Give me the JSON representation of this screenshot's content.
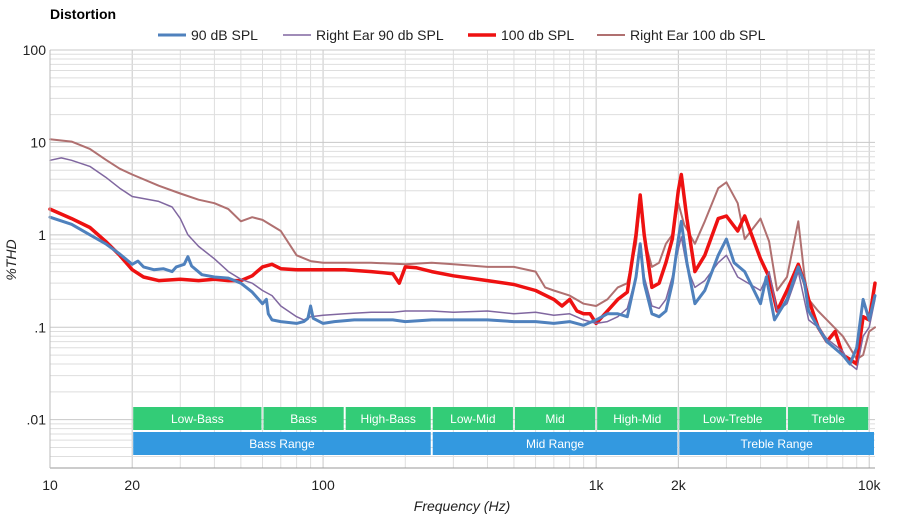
{
  "chart_data": {
    "type": "line",
    "title": "Distortion",
    "xlabel": "Frequency (Hz)",
    "ylabel": "%THD",
    "xscale": "log",
    "yscale": "log",
    "xlim": [
      10,
      10500
    ],
    "ylim": [
      0.003,
      100
    ],
    "grid": true,
    "legend_position": "top",
    "x_ticks": [
      {
        "value": 10,
        "label": "10"
      },
      {
        "value": 20,
        "label": "20"
      },
      {
        "value": 100,
        "label": "100"
      },
      {
        "value": 1000,
        "label": "1k"
      },
      {
        "value": 2000,
        "label": "2k"
      },
      {
        "value": 10000,
        "label": "10k"
      }
    ],
    "y_ticks": [
      {
        "value": 100,
        "label": "100"
      },
      {
        "value": 10,
        "label": "10"
      },
      {
        "value": 1,
        "label": "1"
      },
      {
        "value": 0.1,
        "label": ".1"
      },
      {
        "value": 0.01,
        "label": ".01"
      }
    ],
    "series": [
      {
        "name": "90 dB SPL",
        "color": "#4f81bd",
        "width": 3,
        "points": [
          [
            10,
            1.55
          ],
          [
            12,
            1.3
          ],
          [
            14,
            1.0
          ],
          [
            16,
            0.8
          ],
          [
            18,
            0.62
          ],
          [
            20,
            0.48
          ],
          [
            21,
            0.52
          ],
          [
            22,
            0.45
          ],
          [
            24,
            0.42
          ],
          [
            26,
            0.43
          ],
          [
            28,
            0.4
          ],
          [
            29,
            0.45
          ],
          [
            31,
            0.48
          ],
          [
            32,
            0.58
          ],
          [
            33,
            0.46
          ],
          [
            36,
            0.37
          ],
          [
            40,
            0.35
          ],
          [
            45,
            0.34
          ],
          [
            50,
            0.3
          ],
          [
            55,
            0.24
          ],
          [
            60,
            0.18
          ],
          [
            62,
            0.2
          ],
          [
            63,
            0.14
          ],
          [
            65,
            0.12
          ],
          [
            70,
            0.115
          ],
          [
            80,
            0.11
          ],
          [
            85,
            0.115
          ],
          [
            88,
            0.125
          ],
          [
            90,
            0.17
          ],
          [
            92,
            0.125
          ],
          [
            100,
            0.11
          ],
          [
            110,
            0.115
          ],
          [
            130,
            0.12
          ],
          [
            150,
            0.12
          ],
          [
            180,
            0.12
          ],
          [
            200,
            0.115
          ],
          [
            250,
            0.12
          ],
          [
            300,
            0.12
          ],
          [
            400,
            0.12
          ],
          [
            500,
            0.115
          ],
          [
            600,
            0.115
          ],
          [
            700,
            0.11
          ],
          [
            800,
            0.115
          ],
          [
            900,
            0.105
          ],
          [
            1000,
            0.12
          ],
          [
            1100,
            0.14
          ],
          [
            1200,
            0.14
          ],
          [
            1300,
            0.13
          ],
          [
            1400,
            0.35
          ],
          [
            1450,
            0.8
          ],
          [
            1500,
            0.3
          ],
          [
            1600,
            0.14
          ],
          [
            1700,
            0.13
          ],
          [
            1800,
            0.15
          ],
          [
            1900,
            0.3
          ],
          [
            2000,
            0.9
          ],
          [
            2050,
            1.4
          ],
          [
            2150,
            0.5
          ],
          [
            2300,
            0.18
          ],
          [
            2500,
            0.25
          ],
          [
            2800,
            0.6
          ],
          [
            3000,
            0.9
          ],
          [
            3200,
            0.5
          ],
          [
            3500,
            0.4
          ],
          [
            4000,
            0.18
          ],
          [
            4200,
            0.35
          ],
          [
            4500,
            0.12
          ],
          [
            5000,
            0.2
          ],
          [
            5500,
            0.45
          ],
          [
            5800,
            0.3
          ],
          [
            6000,
            0.15
          ],
          [
            6500,
            0.1
          ],
          [
            7000,
            0.07
          ],
          [
            8000,
            0.05
          ],
          [
            8500,
            0.04
          ],
          [
            9000,
            0.06
          ],
          [
            9500,
            0.2
          ],
          [
            10000,
            0.12
          ],
          [
            10500,
            0.22
          ]
        ]
      },
      {
        "name": "Right Ear 90 db SPL",
        "color": "#8067a0",
        "width": 1.5,
        "points": [
          [
            10,
            6.4
          ],
          [
            11,
            6.8
          ],
          [
            12,
            6.4
          ],
          [
            14,
            5.5
          ],
          [
            16,
            4.2
          ],
          [
            18,
            3.2
          ],
          [
            20,
            2.6
          ],
          [
            25,
            2.3
          ],
          [
            28,
            2.0
          ],
          [
            30,
            1.5
          ],
          [
            32,
            1.0
          ],
          [
            35,
            0.75
          ],
          [
            40,
            0.55
          ],
          [
            45,
            0.4
          ],
          [
            50,
            0.33
          ],
          [
            55,
            0.3
          ],
          [
            60,
            0.25
          ],
          [
            65,
            0.22
          ],
          [
            70,
            0.17
          ],
          [
            80,
            0.13
          ],
          [
            85,
            0.12
          ],
          [
            90,
            0.13
          ],
          [
            100,
            0.135
          ],
          [
            120,
            0.14
          ],
          [
            150,
            0.145
          ],
          [
            180,
            0.145
          ],
          [
            200,
            0.15
          ],
          [
            250,
            0.15
          ],
          [
            300,
            0.145
          ],
          [
            400,
            0.15
          ],
          [
            500,
            0.14
          ],
          [
            600,
            0.145
          ],
          [
            700,
            0.135
          ],
          [
            800,
            0.14
          ],
          [
            900,
            0.12
          ],
          [
            1000,
            0.11
          ],
          [
            1100,
            0.115
          ],
          [
            1200,
            0.13
          ],
          [
            1300,
            0.16
          ],
          [
            1400,
            0.35
          ],
          [
            1450,
            0.8
          ],
          [
            1500,
            0.35
          ],
          [
            1600,
            0.17
          ],
          [
            1700,
            0.16
          ],
          [
            1800,
            0.2
          ],
          [
            1900,
            0.35
          ],
          [
            2000,
            0.7
          ],
          [
            2050,
            0.95
          ],
          [
            2150,
            0.45
          ],
          [
            2300,
            0.27
          ],
          [
            2500,
            0.32
          ],
          [
            2800,
            0.5
          ],
          [
            3000,
            0.6
          ],
          [
            3300,
            0.35
          ],
          [
            4000,
            0.25
          ],
          [
            4300,
            0.4
          ],
          [
            4600,
            0.15
          ],
          [
            5000,
            0.18
          ],
          [
            5500,
            0.4
          ],
          [
            6000,
            0.12
          ],
          [
            6500,
            0.1
          ],
          [
            7000,
            0.075
          ],
          [
            8000,
            0.055
          ],
          [
            8500,
            0.04
          ],
          [
            9000,
            0.035
          ],
          [
            9500,
            0.08
          ],
          [
            10000,
            0.1
          ],
          [
            10500,
            0.2
          ]
        ]
      },
      {
        "name": "100 db SPL",
        "color": "#ee1111",
        "width": 3.5,
        "points": [
          [
            10,
            1.9
          ],
          [
            12,
            1.5
          ],
          [
            14,
            1.2
          ],
          [
            16,
            0.85
          ],
          [
            18,
            0.6
          ],
          [
            20,
            0.42
          ],
          [
            22,
            0.35
          ],
          [
            25,
            0.32
          ],
          [
            30,
            0.33
          ],
          [
            35,
            0.32
          ],
          [
            40,
            0.33
          ],
          [
            45,
            0.32
          ],
          [
            50,
            0.32
          ],
          [
            55,
            0.36
          ],
          [
            60,
            0.45
          ],
          [
            65,
            0.48
          ],
          [
            70,
            0.43
          ],
          [
            80,
            0.42
          ],
          [
            100,
            0.42
          ],
          [
            120,
            0.42
          ],
          [
            150,
            0.4
          ],
          [
            180,
            0.38
          ],
          [
            190,
            0.3
          ],
          [
            200,
            0.45
          ],
          [
            220,
            0.44
          ],
          [
            250,
            0.4
          ],
          [
            300,
            0.36
          ],
          [
            400,
            0.32
          ],
          [
            500,
            0.29
          ],
          [
            600,
            0.25
          ],
          [
            700,
            0.2
          ],
          [
            750,
            0.17
          ],
          [
            800,
            0.2
          ],
          [
            850,
            0.15
          ],
          [
            900,
            0.14
          ],
          [
            950,
            0.14
          ],
          [
            1000,
            0.11
          ],
          [
            1100,
            0.15
          ],
          [
            1200,
            0.2
          ],
          [
            1300,
            0.24
          ],
          [
            1400,
            1.0
          ],
          [
            1450,
            2.7
          ],
          [
            1500,
            1.0
          ],
          [
            1600,
            0.27
          ],
          [
            1700,
            0.3
          ],
          [
            1800,
            0.5
          ],
          [
            1900,
            0.9
          ],
          [
            2000,
            3.0
          ],
          [
            2050,
            4.5
          ],
          [
            2150,
            1.5
          ],
          [
            2300,
            0.4
          ],
          [
            2500,
            0.6
          ],
          [
            2800,
            1.5
          ],
          [
            3000,
            1.6
          ],
          [
            3300,
            1.1
          ],
          [
            3500,
            1.6
          ],
          [
            4000,
            0.55
          ],
          [
            4300,
            0.35
          ],
          [
            4600,
            0.15
          ],
          [
            5000,
            0.25
          ],
          [
            5500,
            0.48
          ],
          [
            5800,
            0.3
          ],
          [
            6000,
            0.2
          ],
          [
            6500,
            0.1
          ],
          [
            7000,
            0.07
          ],
          [
            7500,
            0.09
          ],
          [
            8000,
            0.05
          ],
          [
            8500,
            0.045
          ],
          [
            9000,
            0.04
          ],
          [
            9500,
            0.13
          ],
          [
            10000,
            0.12
          ],
          [
            10500,
            0.3
          ]
        ]
      },
      {
        "name": "Right Ear 100 db SPL",
        "color": "#b07070",
        "width": 2,
        "points": [
          [
            10,
            10.8
          ],
          [
            12,
            10.2
          ],
          [
            14,
            8.5
          ],
          [
            16,
            6.5
          ],
          [
            18,
            5.2
          ],
          [
            20,
            4.5
          ],
          [
            25,
            3.4
          ],
          [
            30,
            2.8
          ],
          [
            35,
            2.4
          ],
          [
            40,
            2.2
          ],
          [
            45,
            1.9
          ],
          [
            50,
            1.4
          ],
          [
            55,
            1.55
          ],
          [
            60,
            1.45
          ],
          [
            70,
            1.1
          ],
          [
            80,
            0.6
          ],
          [
            90,
            0.52
          ],
          [
            100,
            0.5
          ],
          [
            150,
            0.5
          ],
          [
            200,
            0.48
          ],
          [
            250,
            0.5
          ],
          [
            300,
            0.48
          ],
          [
            400,
            0.45
          ],
          [
            500,
            0.45
          ],
          [
            600,
            0.4
          ],
          [
            650,
            0.27
          ],
          [
            700,
            0.25
          ],
          [
            800,
            0.22
          ],
          [
            900,
            0.18
          ],
          [
            1000,
            0.17
          ],
          [
            1100,
            0.2
          ],
          [
            1200,
            0.27
          ],
          [
            1300,
            0.3
          ],
          [
            1400,
            0.8
          ],
          [
            1450,
            2.2
          ],
          [
            1500,
            0.9
          ],
          [
            1600,
            0.45
          ],
          [
            1700,
            0.5
          ],
          [
            1800,
            0.8
          ],
          [
            1900,
            1.0
          ],
          [
            2000,
            2.2
          ],
          [
            2100,
            1.3
          ],
          [
            2300,
            0.8
          ],
          [
            2500,
            1.4
          ],
          [
            2800,
            3.2
          ],
          [
            3000,
            3.7
          ],
          [
            3300,
            2.2
          ],
          [
            3500,
            0.9
          ],
          [
            4000,
            1.5
          ],
          [
            4300,
            0.85
          ],
          [
            4600,
            0.25
          ],
          [
            5000,
            0.35
          ],
          [
            5500,
            1.4
          ],
          [
            5800,
            0.35
          ],
          [
            6000,
            0.2
          ],
          [
            6500,
            0.15
          ],
          [
            7000,
            0.12
          ],
          [
            8000,
            0.08
          ],
          [
            8500,
            0.06
          ],
          [
            9000,
            0.045
          ],
          [
            9500,
            0.05
          ],
          [
            10000,
            0.09
          ],
          [
            10500,
            0.1
          ]
        ]
      }
    ],
    "ranges": [
      {
        "row": 1,
        "label": "Low-Bass",
        "start": 20,
        "end": 60,
        "color": "#33cc77"
      },
      {
        "row": 1,
        "label": "Bass",
        "start": 60,
        "end": 120,
        "color": "#33cc77"
      },
      {
        "row": 1,
        "label": "High-Bass",
        "start": 120,
        "end": 250,
        "color": "#33cc77"
      },
      {
        "row": 1,
        "label": "Low-Mid",
        "start": 250,
        "end": 500,
        "color": "#33cc77"
      },
      {
        "row": 1,
        "label": "Mid",
        "start": 500,
        "end": 1000,
        "color": "#33cc77"
      },
      {
        "row": 1,
        "label": "High-Mid",
        "start": 1000,
        "end": 2000,
        "color": "#33cc77"
      },
      {
        "row": 1,
        "label": "Low-Treble",
        "start": 2000,
        "end": 5000,
        "color": "#33cc77"
      },
      {
        "row": 1,
        "label": "Treble",
        "start": 5000,
        "end": 10000,
        "color": "#33cc77"
      },
      {
        "row": 2,
        "label": "Bass Range",
        "start": 20,
        "end": 250,
        "color": "#3399e0"
      },
      {
        "row": 2,
        "label": "Mid Range",
        "start": 250,
        "end": 2000,
        "color": "#3399e0"
      },
      {
        "row": 2,
        "label": "Treble Range",
        "start": 2000,
        "end": 10500,
        "color": "#3399e0"
      }
    ]
  }
}
